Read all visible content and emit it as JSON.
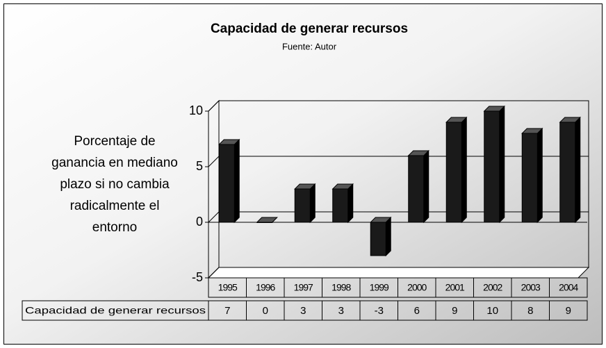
{
  "chart_data": {
    "type": "bar3d",
    "title": "Capacidad de generar recursos",
    "subtitle": "Fuente: Autor",
    "y_label": "Porcentaje de ganancia en mediano plazo si no cambia radicalmente el entorno",
    "categories": [
      "1995",
      "1996",
      "1997",
      "1998",
      "1999",
      "2000",
      "2001",
      "2002",
      "2003",
      "2004"
    ],
    "series": [
      {
        "name": "Capacidad de generar recursos",
        "color": "#1a1a1a",
        "values": [
          7,
          0,
          3,
          3,
          -3,
          6,
          9,
          10,
          8,
          9
        ]
      }
    ],
    "ylim": [
      -5,
      10
    ],
    "yticks": [
      -5,
      0,
      5,
      10
    ],
    "grid": true,
    "data_table": true
  }
}
